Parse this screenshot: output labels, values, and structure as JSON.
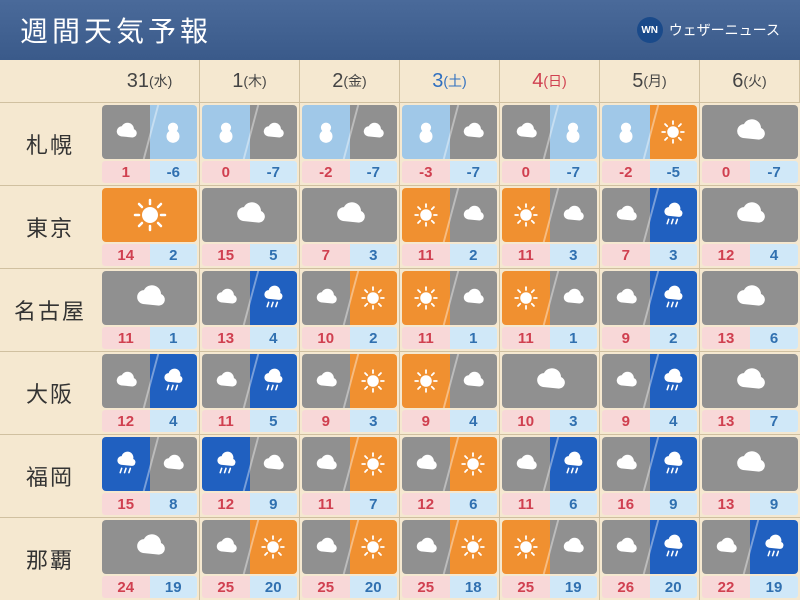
{
  "header": {
    "title": "週間天気予報",
    "brand_text": "ウェザーニュース",
    "brand_logo": "WN"
  },
  "style": {
    "bg_sunny": "#f09030",
    "bg_cloudy": "#909090",
    "bg_rain": "#2060c0",
    "bg_snow": "#a0c8e8",
    "temp_hi_bg": "#f8d8d8",
    "temp_hi_fg": "#d04050",
    "temp_lo_bg": "#d0e8f8",
    "temp_lo_fg": "#3070b0",
    "header_bg": "#3a5a8a",
    "page_bg": "#f5e8d0",
    "day_color_default": "#444",
    "day_color_sat": "#3070c0",
    "day_color_sun": "#d04050",
    "title_fontsize": 28,
    "city_fontsize": 22,
    "day_fontsize": 18,
    "temp_fontsize": 15
  },
  "days": [
    {
      "date": "31",
      "dow": "(水)",
      "kind": "wd"
    },
    {
      "date": "1",
      "dow": "(木)",
      "kind": "wd"
    },
    {
      "date": "2",
      "dow": "(金)",
      "kind": "wd"
    },
    {
      "date": "3",
      "dow": "(土)",
      "kind": "sat"
    },
    {
      "date": "4",
      "dow": "(日)",
      "kind": "sun"
    },
    {
      "date": "5",
      "dow": "(月)",
      "kind": "wd"
    },
    {
      "date": "6",
      "dow": "(火)",
      "kind": "wd"
    }
  ],
  "cities": [
    "札幌",
    "東京",
    "名古屋",
    "大阪",
    "福岡",
    "那覇"
  ],
  "forecast": [
    [
      {
        "w": [
          "cloudy",
          "snow"
        ],
        "hi": 1,
        "lo": -6
      },
      {
        "w": [
          "snow",
          "cloudy"
        ],
        "hi": 0,
        "lo": -7
      },
      {
        "w": [
          "snow",
          "cloudy"
        ],
        "hi": -2,
        "lo": -7
      },
      {
        "w": [
          "snow",
          "cloudy"
        ],
        "hi": -3,
        "lo": -7
      },
      {
        "w": [
          "cloudy",
          "snow"
        ],
        "hi": 0,
        "lo": -7
      },
      {
        "w": [
          "snow",
          "sunny"
        ],
        "hi": -2,
        "lo": -5
      },
      {
        "w": [
          "cloudy"
        ],
        "hi": 0,
        "lo": -7
      }
    ],
    [
      {
        "w": [
          "sunny"
        ],
        "hi": 14,
        "lo": 2
      },
      {
        "w": [
          "cloudy"
        ],
        "hi": 15,
        "lo": 5
      },
      {
        "w": [
          "cloudy"
        ],
        "hi": 7,
        "lo": 3
      },
      {
        "w": [
          "sunny",
          "cloudy"
        ],
        "hi": 11,
        "lo": 2
      },
      {
        "w": [
          "sunny",
          "cloudy"
        ],
        "hi": 11,
        "lo": 3
      },
      {
        "w": [
          "cloudy",
          "rain"
        ],
        "hi": 7,
        "lo": 3
      },
      {
        "w": [
          "cloudy"
        ],
        "hi": 12,
        "lo": 4
      }
    ],
    [
      {
        "w": [
          "cloudy"
        ],
        "hi": 11,
        "lo": 1
      },
      {
        "w": [
          "cloudy",
          "rain"
        ],
        "hi": 13,
        "lo": 4
      },
      {
        "w": [
          "cloudy",
          "sunny"
        ],
        "hi": 10,
        "lo": 2
      },
      {
        "w": [
          "sunny",
          "cloudy"
        ],
        "hi": 11,
        "lo": 1
      },
      {
        "w": [
          "sunny",
          "cloudy"
        ],
        "hi": 11,
        "lo": 1
      },
      {
        "w": [
          "cloudy",
          "rain"
        ],
        "hi": 9,
        "lo": 2
      },
      {
        "w": [
          "cloudy"
        ],
        "hi": 13,
        "lo": 6
      }
    ],
    [
      {
        "w": [
          "cloudy",
          "rain"
        ],
        "hi": 12,
        "lo": 4
      },
      {
        "w": [
          "cloudy",
          "rain"
        ],
        "hi": 11,
        "lo": 5
      },
      {
        "w": [
          "cloudy",
          "sunny"
        ],
        "hi": 9,
        "lo": 3
      },
      {
        "w": [
          "sunny",
          "cloudy"
        ],
        "hi": 9,
        "lo": 4
      },
      {
        "w": [
          "cloudy"
        ],
        "hi": 10,
        "lo": 3
      },
      {
        "w": [
          "cloudy",
          "rain"
        ],
        "hi": 9,
        "lo": 4
      },
      {
        "w": [
          "cloudy"
        ],
        "hi": 13,
        "lo": 7
      }
    ],
    [
      {
        "w": [
          "rain",
          "cloudy"
        ],
        "hi": 15,
        "lo": 8
      },
      {
        "w": [
          "rain",
          "cloudy"
        ],
        "hi": 12,
        "lo": 9
      },
      {
        "w": [
          "cloudy",
          "sunny"
        ],
        "hi": 11,
        "lo": 7
      },
      {
        "w": [
          "cloudy",
          "sunny"
        ],
        "hi": 12,
        "lo": 6
      },
      {
        "w": [
          "cloudy",
          "rain"
        ],
        "hi": 11,
        "lo": 6
      },
      {
        "w": [
          "cloudy",
          "rain"
        ],
        "hi": 16,
        "lo": 9
      },
      {
        "w": [
          "cloudy"
        ],
        "hi": 13,
        "lo": 9
      }
    ],
    [
      {
        "w": [
          "cloudy"
        ],
        "hi": 24,
        "lo": 19
      },
      {
        "w": [
          "cloudy",
          "sunny"
        ],
        "hi": 25,
        "lo": 20
      },
      {
        "w": [
          "cloudy",
          "sunny"
        ],
        "hi": 25,
        "lo": 20
      },
      {
        "w": [
          "cloudy",
          "sunny"
        ],
        "hi": 25,
        "lo": 18
      },
      {
        "w": [
          "sunny",
          "cloudy"
        ],
        "hi": 25,
        "lo": 19
      },
      {
        "w": [
          "cloudy",
          "rain"
        ],
        "hi": 26,
        "lo": 20
      },
      {
        "w": [
          "cloudy",
          "rain"
        ],
        "hi": 22,
        "lo": 19
      }
    ]
  ]
}
